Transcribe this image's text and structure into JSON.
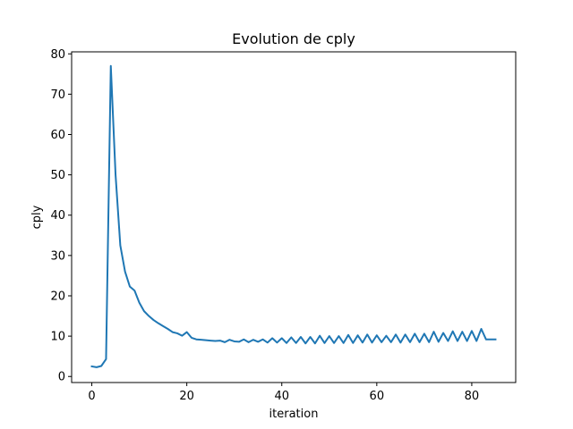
{
  "chart_data": {
    "type": "line",
    "title": "Evolution de cply",
    "xlabel": "iteration",
    "ylabel": "cply",
    "xlim": [
      -4.25,
      89.25
    ],
    "ylim": [
      -1.5,
      80.5
    ],
    "xticks": [
      0,
      20,
      40,
      60,
      80
    ],
    "yticks": [
      0,
      10,
      20,
      30,
      40,
      50,
      60,
      70,
      80
    ],
    "grid": false,
    "color": "#1f77b4",
    "x": [
      0,
      1,
      2,
      3,
      4,
      5,
      6,
      7,
      8,
      9,
      10,
      11,
      12,
      13,
      14,
      15,
      16,
      17,
      18,
      19,
      20,
      21,
      22,
      23,
      24,
      25,
      26,
      27,
      28,
      29,
      30,
      31,
      32,
      33,
      34,
      35,
      36,
      37,
      38,
      39,
      40,
      41,
      42,
      43,
      44,
      45,
      46,
      47,
      48,
      49,
      50,
      51,
      52,
      53,
      54,
      55,
      56,
      57,
      58,
      59,
      60,
      61,
      62,
      63,
      64,
      65,
      66,
      67,
      68,
      69,
      70,
      71,
      72,
      73,
      74,
      75,
      76,
      77,
      78,
      79,
      80,
      81,
      82,
      83,
      84,
      85
    ],
    "y": [
      2.5,
      2.3,
      2.6,
      4.3,
      77.0,
      50.0,
      32.5,
      26.0,
      22.3,
      21.3,
      18.3,
      16.2,
      15.0,
      14.0,
      13.2,
      12.5,
      11.8,
      11.0,
      10.7,
      10.1,
      11.0,
      9.6,
      9.2,
      9.1,
      9.0,
      8.9,
      8.8,
      8.9,
      8.5,
      9.1,
      8.7,
      8.6,
      9.2,
      8.5,
      9.1,
      8.6,
      9.2,
      8.4,
      9.5,
      8.4,
      9.5,
      8.3,
      9.7,
      8.3,
      9.8,
      8.2,
      9.8,
      8.2,
      10.1,
      8.3,
      10.0,
      8.3,
      10.0,
      8.3,
      10.3,
      8.3,
      10.2,
      8.4,
      10.4,
      8.4,
      10.2,
      8.5,
      10.1,
      8.5,
      10.4,
      8.4,
      10.4,
      8.5,
      10.6,
      8.5,
      10.6,
      8.5,
      11.1,
      8.6,
      10.8,
      8.8,
      11.2,
      8.8,
      11.1,
      8.8,
      11.3,
      8.8,
      11.8,
      9.2,
      9.2,
      9.2
    ]
  }
}
